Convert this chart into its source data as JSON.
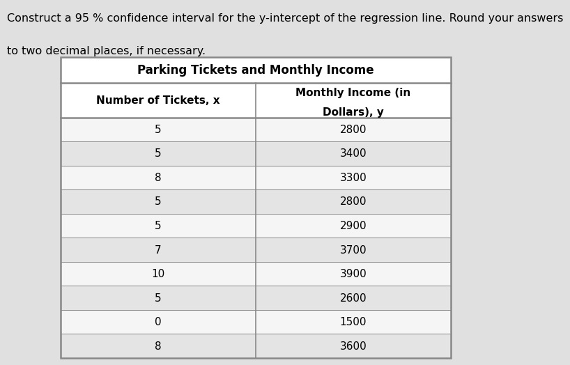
{
  "prompt_text_line1": "Construct a 95 % confidence interval for the y-intercept of the regression line. Round your answers",
  "prompt_text_line2": "to two decimal places, if necessary.",
  "table_title": "Parking Tickets and Monthly Income",
  "col1_header": "Number of Tickets, x",
  "col2_header_line1": "Monthly Income (in",
  "col2_header_line2": "Dollars), y",
  "x_values": [
    5,
    5,
    8,
    5,
    5,
    7,
    10,
    5,
    0,
    8
  ],
  "y_values": [
    2800,
    3400,
    3300,
    2800,
    2900,
    3700,
    3900,
    2600,
    1500,
    3600
  ],
  "bg_color": "#e0e0e0",
  "row_color_light": "#f5f5f5",
  "row_color_dark": "#e4e4e4",
  "border_color": "#888888",
  "text_color": "#000000",
  "prompt_fontsize": 11.5,
  "title_fontsize": 12,
  "header_fontsize": 11,
  "data_fontsize": 11,
  "col_split": 0.5
}
